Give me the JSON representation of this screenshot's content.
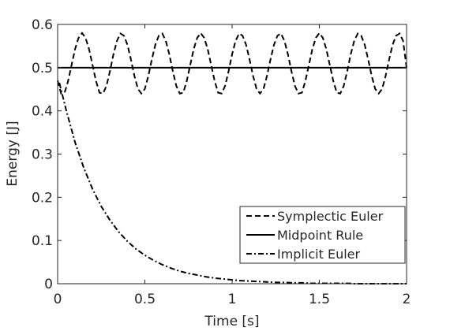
{
  "chart_data": {
    "type": "line",
    "title": "",
    "xlabel": "Time [s]",
    "ylabel": "Energy [J]",
    "xlim": [
      0,
      2
    ],
    "ylim": [
      0,
      0.6
    ],
    "xticks": [
      0,
      0.5,
      1,
      1.5,
      2
    ],
    "xtick_labels": [
      "0",
      "0.5",
      "1",
      "1.5",
      "2"
    ],
    "yticks": [
      0,
      0.1,
      0.2,
      0.3,
      0.4,
      0.5,
      0.6
    ],
    "ytick_labels": [
      "0",
      "0.1",
      "0.2",
      "0.3",
      "0.4",
      "0.5",
      "0.6"
    ],
    "grid": false,
    "box": true,
    "legend_position": "bottom-right",
    "series": [
      {
        "name": "Symplectic Euler",
        "line_style": "dashed",
        "color": "#000000",
        "x": [
          0.0,
          0.02,
          0.04,
          0.06,
          0.08,
          0.1,
          0.12,
          0.14,
          0.16,
          0.18,
          0.2,
          0.22,
          0.24,
          0.26,
          0.28,
          0.3,
          0.32,
          0.34,
          0.36,
          0.38,
          0.4,
          0.42,
          0.44,
          0.46,
          0.48,
          0.5,
          0.52,
          0.54,
          0.56,
          0.58,
          0.6,
          0.62,
          0.64,
          0.66,
          0.68,
          0.7,
          0.72,
          0.74,
          0.76,
          0.78,
          0.8,
          0.82,
          0.84,
          0.86,
          0.88,
          0.9,
          0.92,
          0.94,
          0.96,
          0.98,
          1.0,
          1.02,
          1.04,
          1.06,
          1.08,
          1.1,
          1.12,
          1.14,
          1.16,
          1.18,
          1.2,
          1.22,
          1.24,
          1.26,
          1.28,
          1.3,
          1.32,
          1.34,
          1.36,
          1.38,
          1.4,
          1.42,
          1.44,
          1.46,
          1.48,
          1.5,
          1.52,
          1.54,
          1.56,
          1.58,
          1.6,
          1.62,
          1.64,
          1.66,
          1.68,
          1.7,
          1.72,
          1.74,
          1.76,
          1.78,
          1.8,
          1.82,
          1.84,
          1.86,
          1.88,
          1.9,
          1.92,
          1.94,
          1.96,
          1.98,
          2.0
        ],
        "y": [
          0.47,
          0.44,
          0.442,
          0.469,
          0.506,
          0.543,
          0.569,
          0.58,
          0.569,
          0.543,
          0.506,
          0.469,
          0.442,
          0.44,
          0.458,
          0.492,
          0.531,
          0.562,
          0.579,
          0.574,
          0.553,
          0.519,
          0.481,
          0.451,
          0.44,
          0.451,
          0.481,
          0.519,
          0.553,
          0.574,
          0.579,
          0.562,
          0.531,
          0.492,
          0.458,
          0.44,
          0.442,
          0.469,
          0.506,
          0.543,
          0.569,
          0.58,
          0.569,
          0.543,
          0.506,
          0.469,
          0.442,
          0.44,
          0.458,
          0.492,
          0.531,
          0.562,
          0.579,
          0.574,
          0.553,
          0.519,
          0.481,
          0.451,
          0.44,
          0.451,
          0.481,
          0.519,
          0.553,
          0.574,
          0.579,
          0.562,
          0.531,
          0.492,
          0.458,
          0.44,
          0.442,
          0.469,
          0.506,
          0.543,
          0.569,
          0.58,
          0.569,
          0.543,
          0.506,
          0.469,
          0.442,
          0.44,
          0.458,
          0.492,
          0.531,
          0.562,
          0.579,
          0.574,
          0.553,
          0.519,
          0.481,
          0.451,
          0.44,
          0.451,
          0.481,
          0.519,
          0.553,
          0.574,
          0.579,
          0.562,
          0.5
        ]
      },
      {
        "name": "Midpoint Rule",
        "line_style": "solid",
        "color": "#000000",
        "x": [
          0,
          2
        ],
        "y": [
          0.5,
          0.5
        ]
      },
      {
        "name": "Implicit Euler",
        "line_style": "dash-dot",
        "color": "#000000",
        "x": [
          0.01,
          0.05,
          0.1,
          0.15,
          0.2,
          0.25,
          0.3,
          0.35,
          0.4,
          0.45,
          0.5,
          0.55,
          0.6,
          0.65,
          0.7,
          0.75,
          0.8,
          0.85,
          0.9,
          0.95,
          1.0,
          1.05,
          1.1,
          1.15,
          1.2,
          1.25,
          1.3,
          1.35,
          1.4,
          1.45,
          1.5,
          1.55,
          1.6,
          1.65,
          1.7,
          1.75,
          1.8,
          1.85,
          1.9,
          1.95,
          2.0
        ],
        "y": [
          0.465,
          0.4,
          0.327,
          0.268,
          0.219,
          0.179,
          0.147,
          0.12,
          0.098,
          0.08,
          0.066,
          0.054,
          0.044,
          0.036,
          0.029,
          0.024,
          0.02,
          0.016,
          0.013,
          0.011,
          0.009,
          0.007,
          0.006,
          0.005,
          0.004,
          0.003,
          0.003,
          0.002,
          0.002,
          0.001,
          0.001,
          0.001,
          0.001,
          0.001,
          0.0,
          0.0,
          0.0,
          0.0,
          0.0,
          0.0,
          0.0
        ]
      }
    ]
  }
}
